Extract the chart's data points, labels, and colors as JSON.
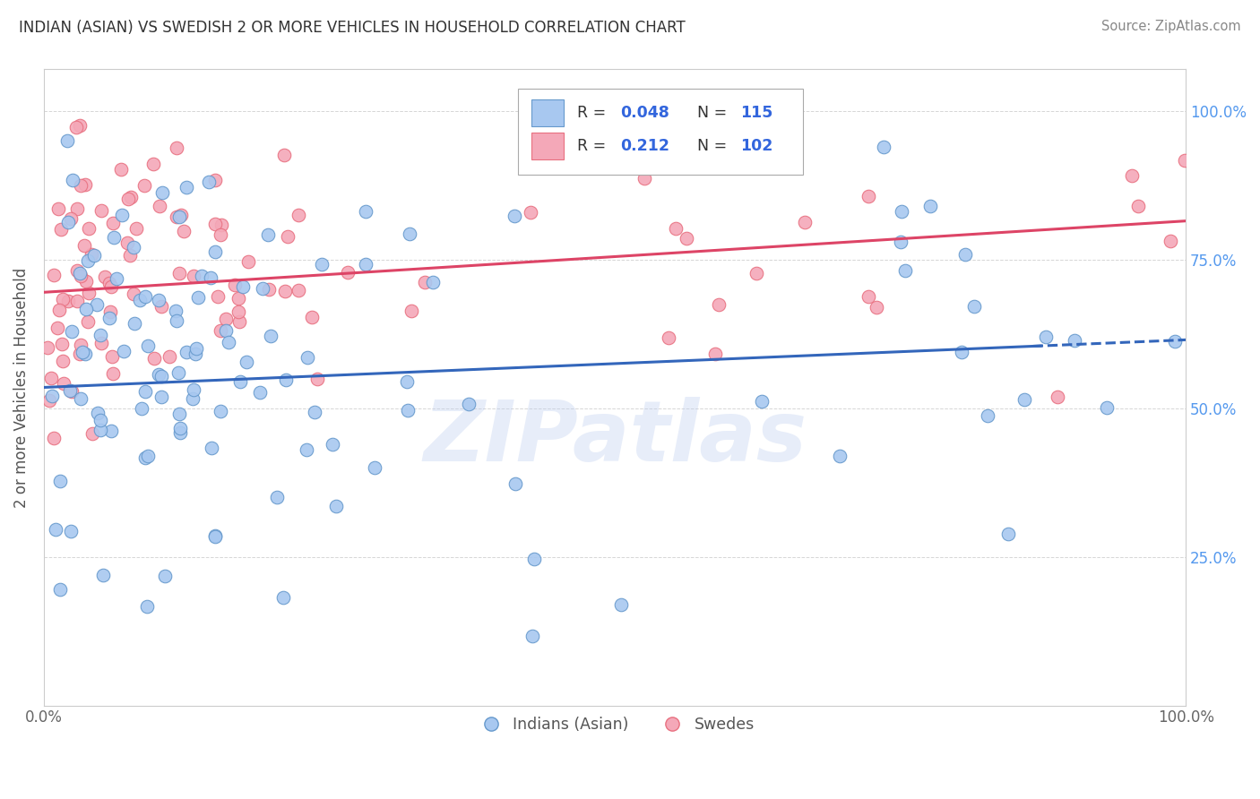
{
  "title": "INDIAN (ASIAN) VS SWEDISH 2 OR MORE VEHICLES IN HOUSEHOLD CORRELATION CHART",
  "source": "Source: ZipAtlas.com",
  "ylabel": "2 or more Vehicles in Household",
  "legend_label1": "Indians (Asian)",
  "legend_label2": "Swedes",
  "r1": 0.048,
  "n1": 115,
  "r2": 0.212,
  "n2": 102,
  "color_blue_fill": "#A8C8F0",
  "color_blue_edge": "#6699CC",
  "color_pink_fill": "#F4A8B8",
  "color_pink_edge": "#E87080",
  "color_line_blue": "#3366BB",
  "color_line_pink": "#DD4466",
  "background": "#FFFFFF",
  "grid_color": "#CCCCCC",
  "title_color": "#333333",
  "legend_r_color": "#3366DD",
  "legend_n_color": "#3366DD",
  "watermark_color": "#BBCCEE",
  "right_tick_color": "#5599EE"
}
